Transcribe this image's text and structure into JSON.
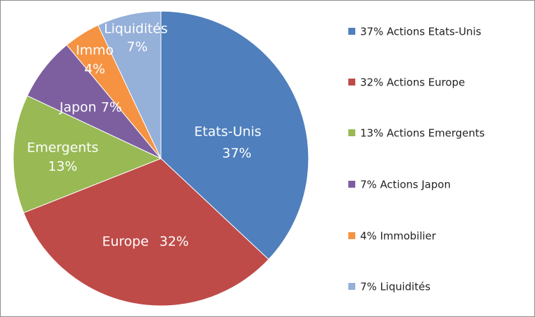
{
  "chart_data": {
    "type": "pie",
    "categories": [
      "Etats-Unis",
      "Europe",
      "Emergents",
      "Japon",
      "Immo",
      "Liquidités"
    ],
    "values": [
      37,
      32,
      13,
      7,
      4,
      7
    ],
    "value_labels": [
      "37%",
      "32%",
      "13%",
      "7%",
      "4%",
      "7%"
    ],
    "legend_labels": [
      "37% Actions Etats-Unis",
      "32% Actions Europe",
      "13% Actions Emergents",
      "7% Actions Japon",
      "4% Immobilier",
      "7% Liquidités"
    ],
    "colors": [
      "#4f7fbc",
      "#be4b48",
      "#98b954",
      "#7d5fa0",
      "#f59343",
      "#95b0d9"
    ]
  }
}
